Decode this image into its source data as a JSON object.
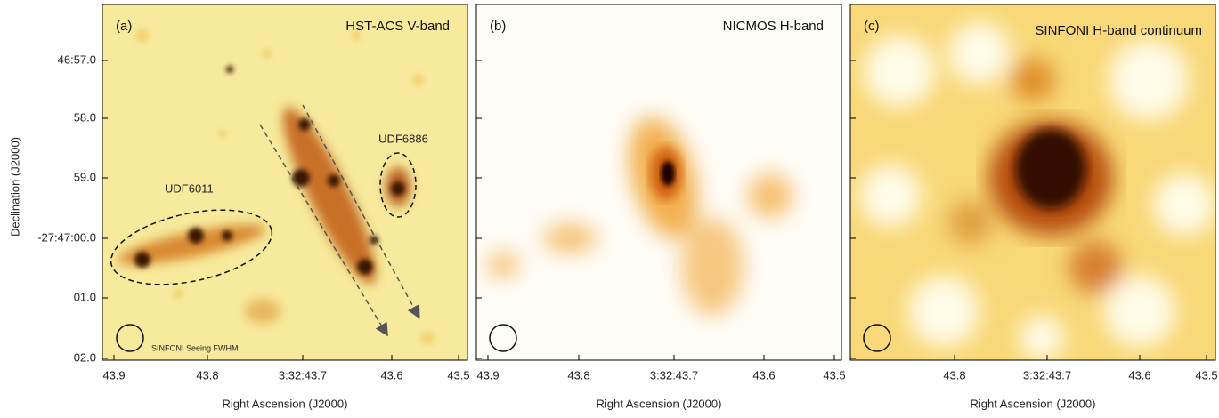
{
  "panels": [
    {
      "label": "(a)",
      "title": "HST-ACS V-band",
      "annotations": [
        "UDF6011",
        "UDF6886",
        "SINFONI Seeing FWHM"
      ]
    },
    {
      "label": "(b)",
      "title": "NICMOS H-band"
    },
    {
      "label": "(c)",
      "title": "SINFONI H-band continuum"
    }
  ],
  "y_axis": {
    "label": "Declination (J2000)",
    "ticks": [
      "46:57.0",
      "58.0",
      "59.0",
      "-27:47:00.0",
      "01.0",
      "02.0"
    ]
  },
  "x_axes": [
    {
      "label": "Right Ascension (J2000)",
      "ticks": [
        "43.9",
        "43.8",
        "3:32:43.7",
        "43.6",
        "43.5"
      ]
    },
    {
      "label": "Right Ascension (J2000)",
      "ticks": [
        "43.9",
        "43.8",
        "3:32:43.7",
        "43.6",
        "43.5"
      ]
    },
    {
      "label": "Right Ascension (J2000)",
      "ticks": [
        "43.8",
        "3:32:43.7",
        "43.6",
        "43.5"
      ]
    }
  ]
}
